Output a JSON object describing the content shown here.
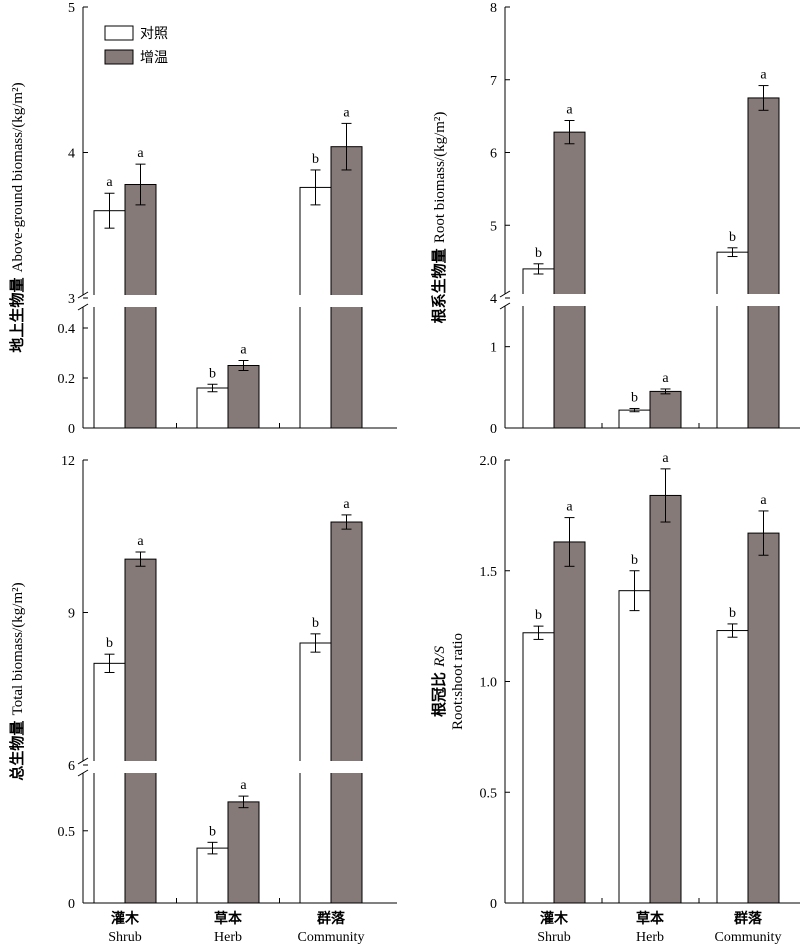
{
  "colors": {
    "control": "#ffffff",
    "warming": "#857a78",
    "stroke": "#000000"
  },
  "legend": [
    {
      "name": "对照"
    },
    {
      "name": "增温"
    }
  ],
  "categories": [
    {
      "cn": "灌木",
      "en": "Shrub"
    },
    {
      "cn": "草本",
      "en": "Herb"
    },
    {
      "cn": "群落",
      "en": "Community"
    }
  ],
  "chart_data": [
    {
      "type": "bar",
      "ylabel_cn": "地上生物量",
      "ylabel_en": "Above-ground biomass/(kg/m²)",
      "axis_break": true,
      "lower_ylim": [
        0,
        0.5
      ],
      "lower_ticks": [
        "0",
        "0.2",
        "0.4"
      ],
      "lower_tick_values": [
        0,
        0.2,
        0.4
      ],
      "upper_ylim": [
        3,
        5
      ],
      "upper_ticks": [
        "3",
        "4",
        "5"
      ],
      "upper_tick_values": [
        3,
        4,
        5
      ],
      "legend_placement": "top-left",
      "series": [
        {
          "name": "对照",
          "values": [
            3.6,
            0.16,
            3.76
          ],
          "errors": [
            0.12,
            0.015,
            0.12
          ],
          "labels": [
            "a",
            "b",
            "b"
          ]
        },
        {
          "name": "增温",
          "values": [
            3.78,
            0.25,
            4.04
          ],
          "errors": [
            0.14,
            0.02,
            0.16
          ],
          "labels": [
            "a",
            "a",
            "a"
          ]
        }
      ]
    },
    {
      "type": "bar",
      "ylabel_cn": "根系生物量",
      "ylabel_en": "Root biomass/(kg/m²)",
      "axis_break": true,
      "lower_ylim": [
        0,
        1.5
      ],
      "lower_ticks": [
        "0",
        "1"
      ],
      "lower_tick_values": [
        0,
        1
      ],
      "upper_ylim": [
        4,
        8
      ],
      "upper_ticks": [
        "4",
        "5",
        "6",
        "7",
        "8"
      ],
      "upper_tick_values": [
        4,
        5,
        6,
        7,
        8
      ],
      "series": [
        {
          "name": "对照",
          "values": [
            4.4,
            0.22,
            4.63
          ],
          "errors": [
            0.07,
            0.02,
            0.06
          ],
          "labels": [
            "b",
            "b",
            "b"
          ]
        },
        {
          "name": "增温",
          "values": [
            6.28,
            0.45,
            6.75
          ],
          "errors": [
            0.16,
            0.03,
            0.17
          ],
          "labels": [
            "a",
            "a",
            "a"
          ]
        }
      ]
    },
    {
      "type": "bar",
      "ylabel_cn": "总生物量",
      "ylabel_en": "Total biomass/(kg/m²)",
      "axis_break": true,
      "lower_ylim": [
        0,
        0.9
      ],
      "lower_ticks": [
        "0",
        "0.5"
      ],
      "lower_tick_values": [
        0,
        0.5
      ],
      "upper_ylim": [
        6,
        12
      ],
      "upper_ticks": [
        "6",
        "9",
        "12"
      ],
      "upper_tick_values": [
        6,
        9,
        12
      ],
      "series": [
        {
          "name": "对照",
          "values": [
            8.0,
            0.38,
            8.4
          ],
          "errors": [
            0.18,
            0.04,
            0.18
          ],
          "labels": [
            "b",
            "b",
            "b"
          ]
        },
        {
          "name": "增温",
          "values": [
            10.05,
            0.7,
            10.78
          ],
          "errors": [
            0.14,
            0.04,
            0.14
          ],
          "labels": [
            "a",
            "a",
            "a"
          ]
        }
      ]
    },
    {
      "type": "bar",
      "ylabel_cn": "根冠比",
      "ylabel_en_italic": "R/S",
      "ylabel_en2": "Root:shoot ratio",
      "axis_break": false,
      "ylim": [
        0,
        2.0
      ],
      "ticks": [
        "0",
        "0.5",
        "1.0",
        "1.5",
        "2.0"
      ],
      "tick_values": [
        0,
        0.5,
        1.0,
        1.5,
        2.0
      ],
      "series": [
        {
          "name": "对照",
          "values": [
            1.22,
            1.41,
            1.23
          ],
          "errors": [
            0.03,
            0.09,
            0.03
          ],
          "labels": [
            "b",
            "b",
            "b"
          ]
        },
        {
          "name": "增温",
          "values": [
            1.63,
            1.84,
            1.67
          ],
          "errors": [
            0.11,
            0.12,
            0.1
          ],
          "labels": [
            "a",
            "a",
            "a"
          ]
        }
      ]
    }
  ]
}
